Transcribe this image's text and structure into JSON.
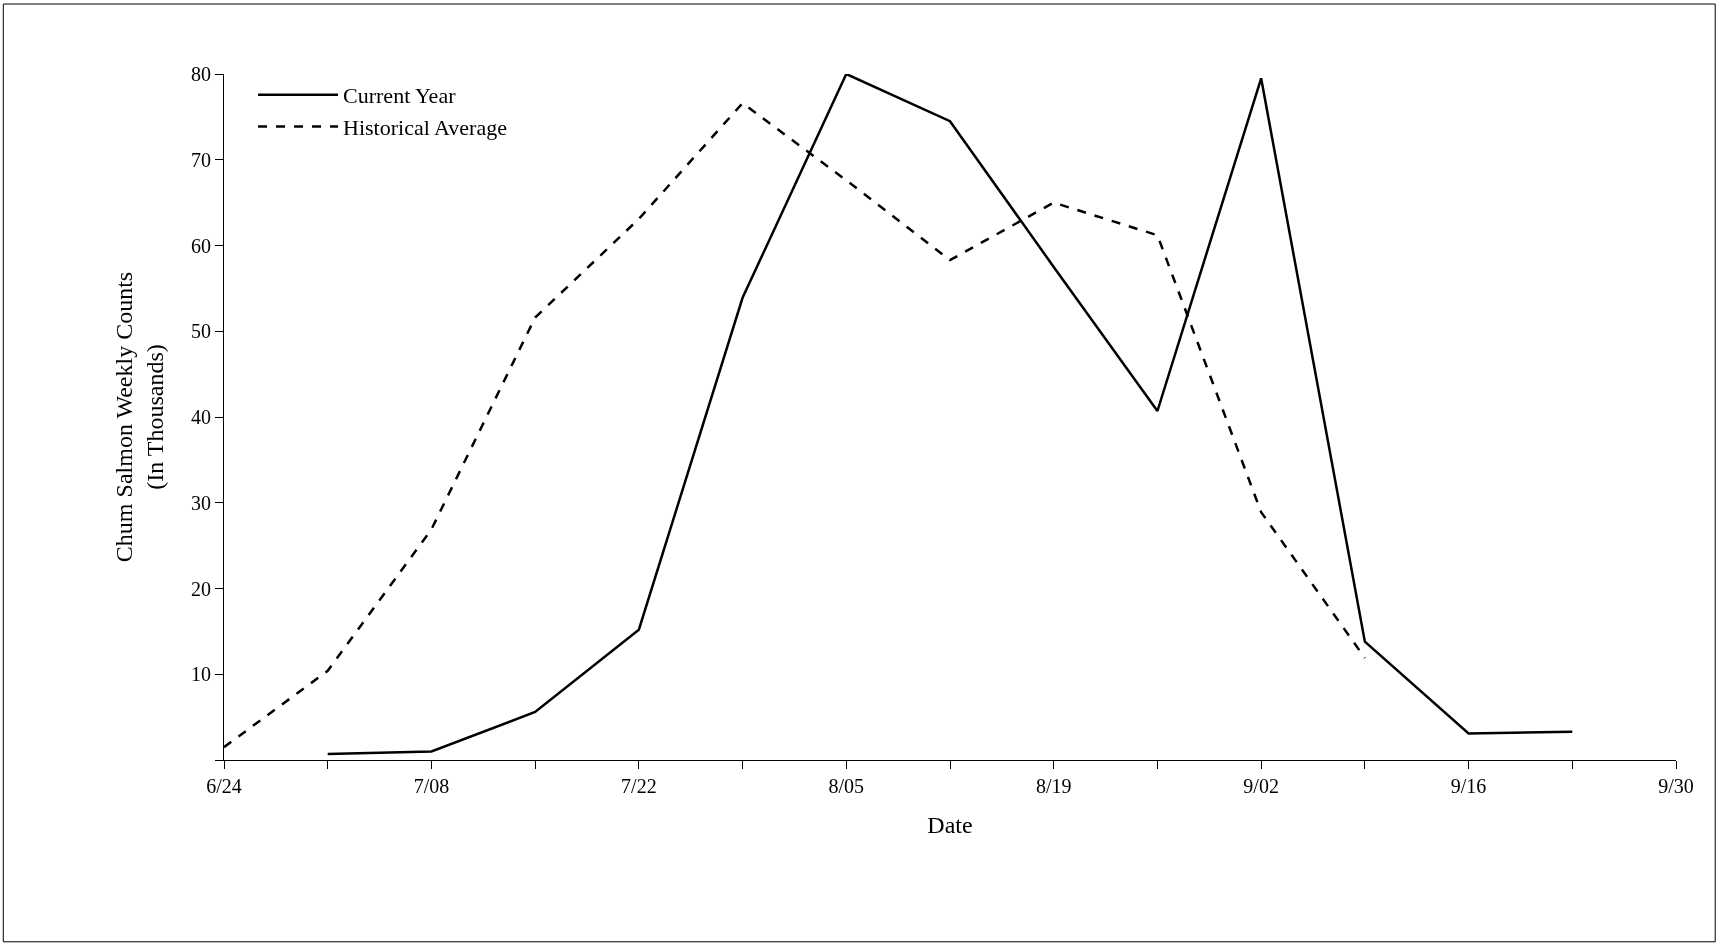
{
  "chart_data": {
    "type": "line",
    "xlabel": "Date",
    "ylabel": "Chum Salmon Weekly Counts\n(In Thousands)",
    "series": [
      {
        "name": "Current Year",
        "color": "#000000",
        "line_style": "solid",
        "x": [
          "--07-01",
          "--07-08",
          "--07-15",
          "--07-22",
          "--07-29",
          "--08-05",
          "--08-12",
          "--08-19",
          "--08-26",
          "--09-02",
          "--09-09",
          "--09-16",
          "--09-23"
        ],
        "values": [
          0.7,
          1.0,
          5.6,
          15.2,
          53.9,
          80,
          74.5,
          57.5,
          40.7,
          79.5,
          13.8,
          3.1,
          3.3
        ]
      },
      {
        "name": "Historical Average",
        "color": "#000000",
        "line_style": "dashed",
        "x": [
          "--06-24",
          "--07-01",
          "--07-08",
          "--07-15",
          "--07-22",
          "--07-29",
          "--08-05",
          "--08-12",
          "--08-19",
          "--08-26",
          "--09-02",
          "--09-09"
        ],
        "values": [
          1.5,
          10.4,
          26.9,
          51.6,
          63.1,
          76.6,
          67.6,
          58.3,
          65.0,
          61.2,
          28.9,
          11.9
        ]
      }
    ],
    "xlim": [
      "--06-24",
      "--09-30"
    ],
    "xticks": [
      {
        "value": "--06-24",
        "label": "6/24"
      },
      {
        "value": "--07-01",
        "label": null
      },
      {
        "value": "--07-08",
        "label": "7/08"
      },
      {
        "value": "--07-15",
        "label": null
      },
      {
        "value": "--07-22",
        "label": "7/22"
      },
      {
        "value": "--07-29",
        "label": null
      },
      {
        "value": "--08-05",
        "label": "8/05"
      },
      {
        "value": "--08-12",
        "label": null
      },
      {
        "value": "--08-19",
        "label": "8/19"
      },
      {
        "value": "--08-26",
        "label": null
      },
      {
        "value": "--09-02",
        "label": "9/02"
      },
      {
        "value": "--09-09",
        "label": null
      },
      {
        "value": "--09-16",
        "label": "9/16"
      },
      {
        "value": "--09-23",
        "label": null
      },
      {
        "value": "--09-30",
        "label": "9/30"
      }
    ],
    "ylim": [
      0,
      80
    ],
    "yticks": [
      {
        "value": 0,
        "label": null
      },
      10,
      20,
      30,
      40,
      50,
      60,
      70,
      80
    ],
    "legend": "top left",
    "marker": "none"
  }
}
